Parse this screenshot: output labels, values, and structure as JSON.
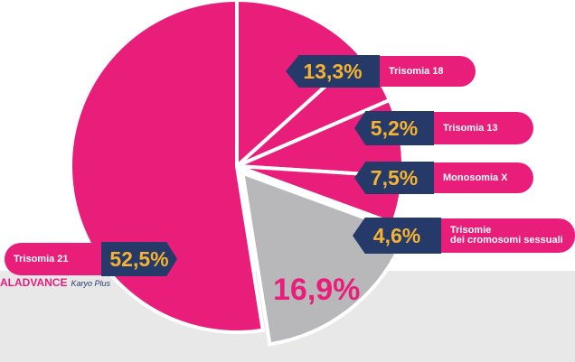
{
  "chart_data": {
    "type": "pie",
    "categories": [
      "Trisomia 18",
      "Trisomia 13",
      "Monosomia X",
      "Trisomie\ndei cromosomi sessuali",
      null,
      "Trisomia 21"
    ],
    "values": [
      13.3,
      5.2,
      7.5,
      4.6,
      16.9,
      52.5
    ],
    "value_labels": [
      "13,3%",
      "5,2%",
      "7,5%",
      "4,6%",
      "16,9%",
      "52,5%"
    ],
    "colors": [
      "#e91e7b",
      "#e91e7b",
      "#e91e7b",
      "#e91e7b",
      "#b8b8ba",
      "#e91e7b"
    ],
    "footer": {
      "brand": "ALADVANCE",
      "product": "Karyo Plus"
    }
  }
}
